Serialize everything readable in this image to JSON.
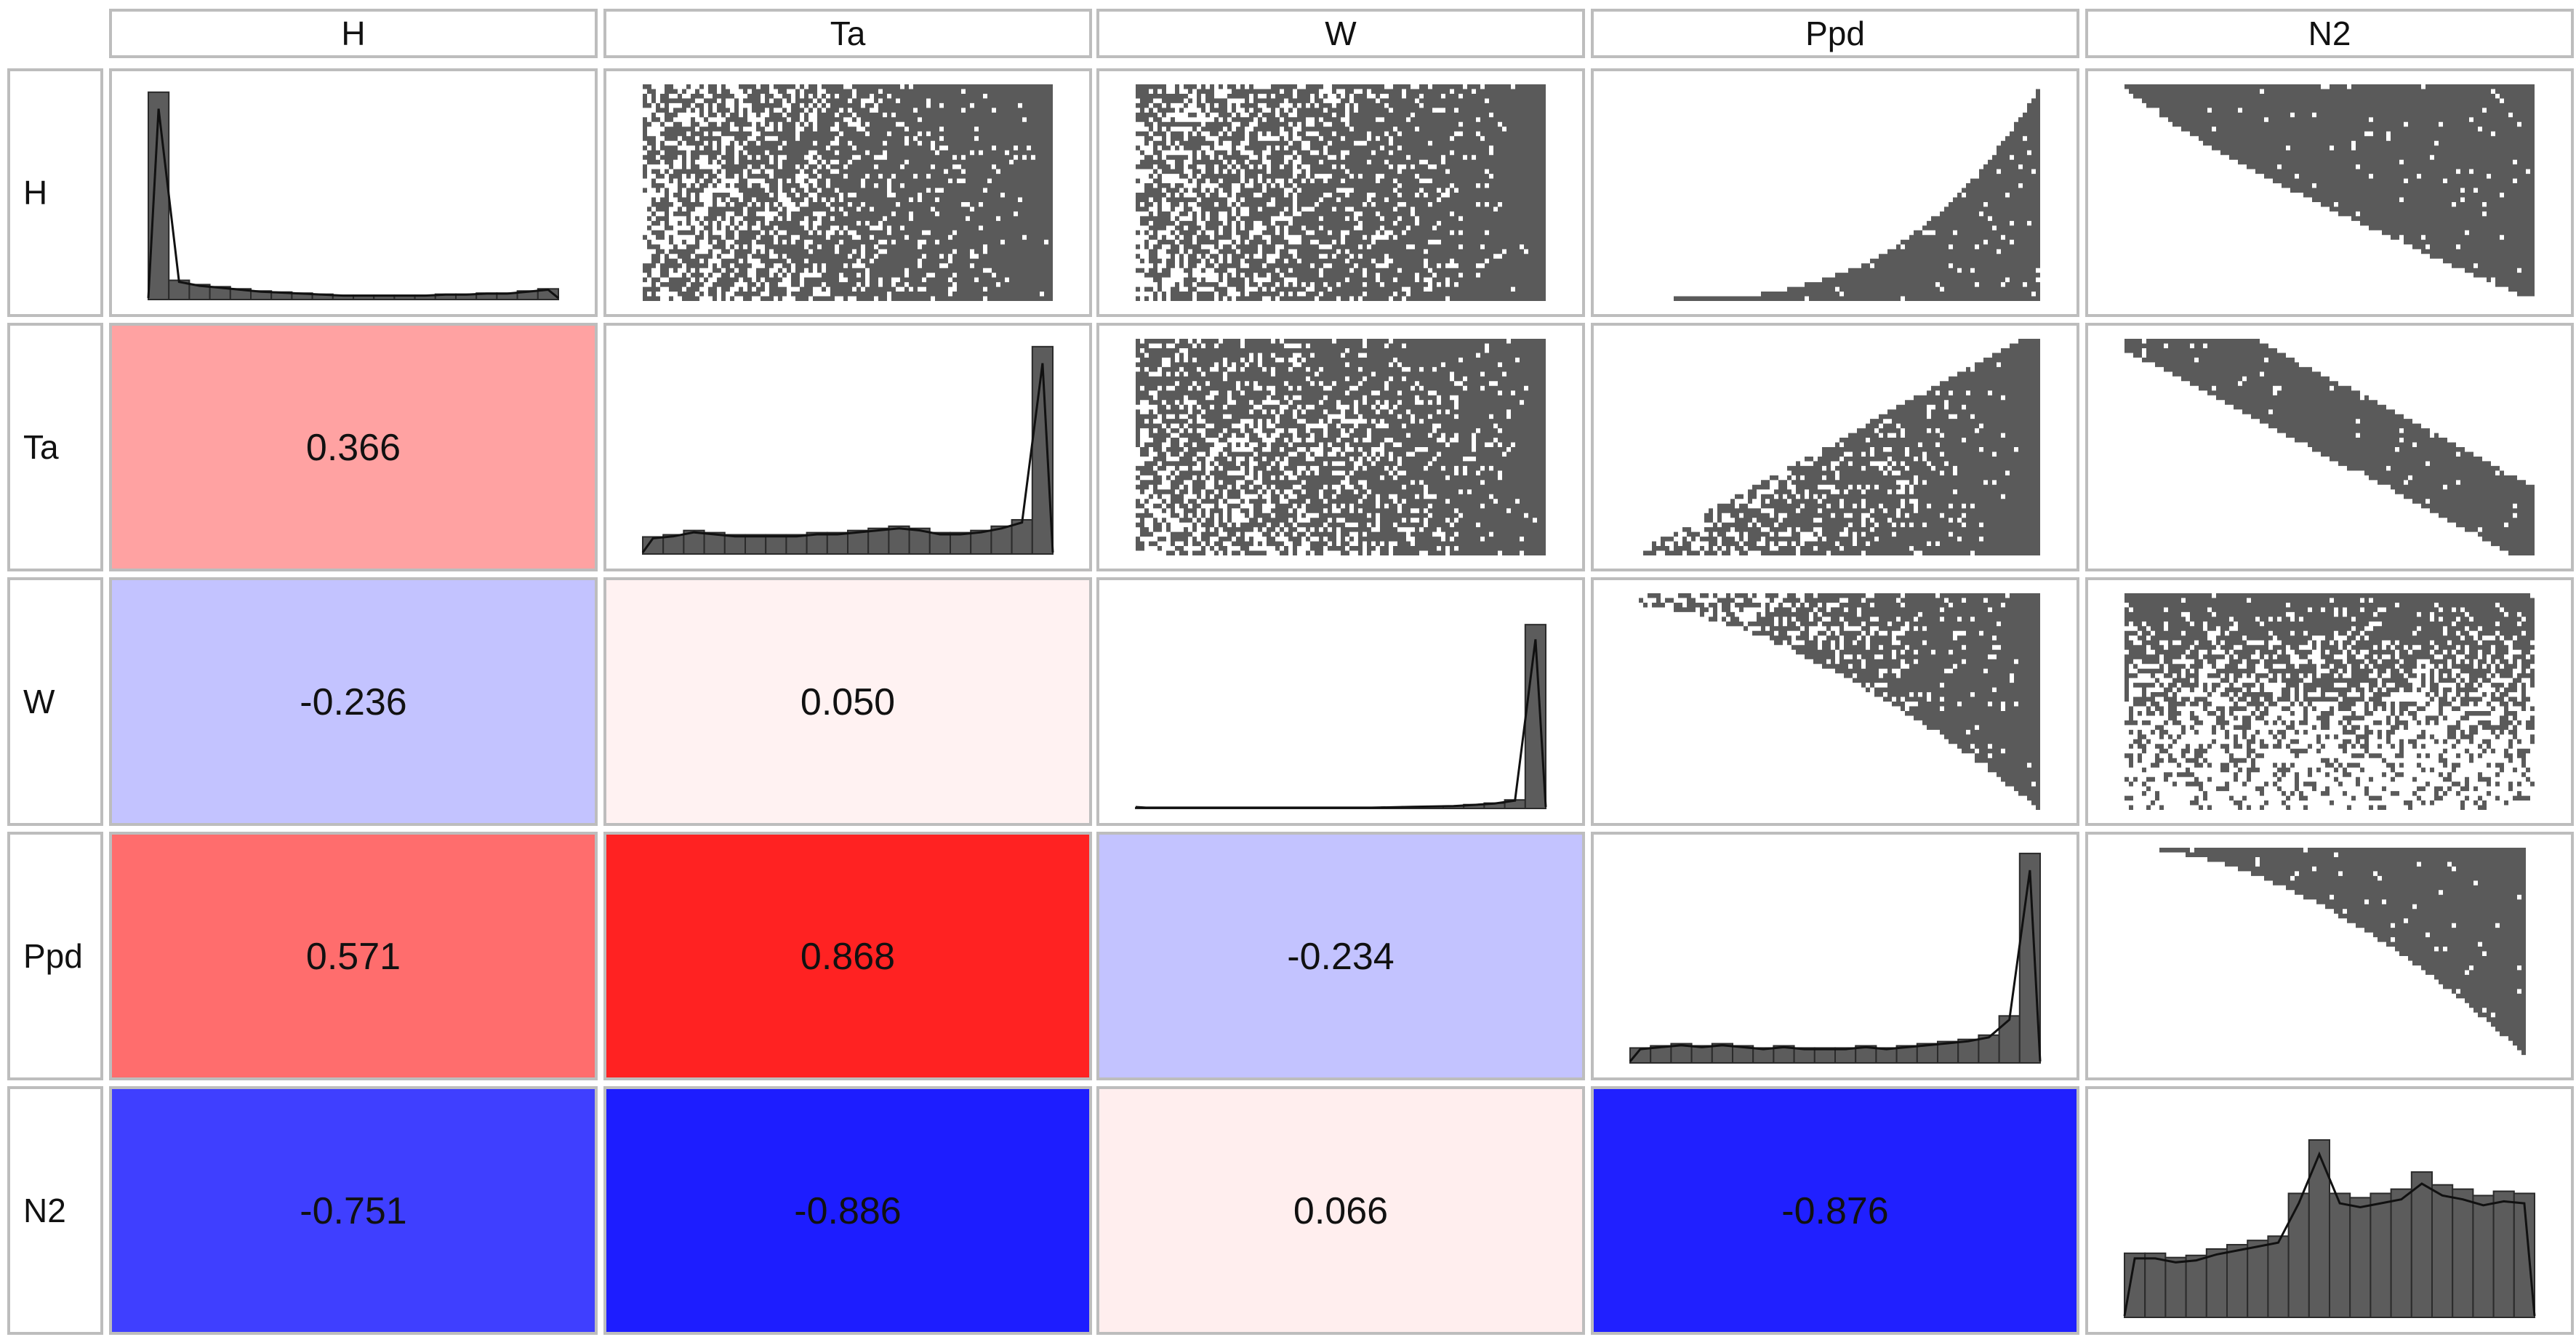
{
  "chart_data": {
    "type": "scatter-matrix",
    "variables": [
      "H",
      "Ta",
      "W",
      "Ppd",
      "N2"
    ],
    "lower": "correlation coefficients",
    "upper": "pairwise scatter plots",
    "diagonal": "histograms with density line",
    "correlations": [
      {
        "row": "Ta",
        "col": "H",
        "value": 0.366,
        "label": "0.366"
      },
      {
        "row": "W",
        "col": "H",
        "value": -0.236,
        "label": "-0.236"
      },
      {
        "row": "W",
        "col": "Ta",
        "value": 0.05,
        "label": "0.050"
      },
      {
        "row": "Ppd",
        "col": "H",
        "value": 0.571,
        "label": "0.571"
      },
      {
        "row": "Ppd",
        "col": "Ta",
        "value": 0.868,
        "label": "0.868"
      },
      {
        "row": "Ppd",
        "col": "W",
        "value": -0.234,
        "label": "-0.234"
      },
      {
        "row": "N2",
        "col": "H",
        "value": -0.751,
        "label": "-0.751"
      },
      {
        "row": "N2",
        "col": "Ta",
        "value": -0.886,
        "label": "-0.886"
      },
      {
        "row": "N2",
        "col": "W",
        "value": 0.066,
        "label": "0.066"
      },
      {
        "row": "N2",
        "col": "Ppd",
        "value": -0.876,
        "label": "-0.876"
      }
    ],
    "histograms": {
      "H": [
        0.97,
        0.09,
        0.07,
        0.06,
        0.05,
        0.04,
        0.035,
        0.03,
        0.025,
        0.02,
        0.02,
        0.02,
        0.02,
        0.02,
        0.025,
        0.025,
        0.03,
        0.03,
        0.04,
        0.05
      ],
      "Ta": [
        0.08,
        0.09,
        0.11,
        0.1,
        0.09,
        0.09,
        0.09,
        0.09,
        0.1,
        0.1,
        0.11,
        0.12,
        0.13,
        0.12,
        0.1,
        0.1,
        0.11,
        0.13,
        0.16,
        0.97
      ],
      "W": [
        0.004,
        0.004,
        0.004,
        0.004,
        0.004,
        0.004,
        0.004,
        0.004,
        0.004,
        0.004,
        0.004,
        0.004,
        0.006,
        0.008,
        0.01,
        0.012,
        0.018,
        0.025,
        0.04,
        0.86
      ],
      "Ppd": [
        0.07,
        0.08,
        0.09,
        0.08,
        0.09,
        0.08,
        0.07,
        0.08,
        0.07,
        0.07,
        0.07,
        0.08,
        0.07,
        0.08,
        0.09,
        0.1,
        0.11,
        0.13,
        0.22,
        0.98
      ],
      "N2": [
        0.3,
        0.3,
        0.28,
        0.29,
        0.32,
        0.34,
        0.36,
        0.38,
        0.58,
        0.83,
        0.58,
        0.56,
        0.58,
        0.6,
        0.68,
        0.62,
        0.6,
        0.57,
        0.59,
        0.58
      ]
    },
    "scatter_shapes": {
      "H-Ta": "uniform-fill-denser-right",
      "H-W": "uniform-fill-denser-right",
      "H-Ppd": "convex-rising-lower-right",
      "H-N2": "upper-right-triangle-descending",
      "Ta-W": "denser-upper-right",
      "Ta-Ppd": "wedge-opening-up-right",
      "Ta-N2": "descending-diagonal-band",
      "W-Ppd": "upper-right-filled-top",
      "W-N2": "dense-top-sparse-bottom",
      "Ppd-N2": "concave-descending-upper-right"
    },
    "colors": {
      "positive": "#ff0000",
      "negative": "#0000ff",
      "neutral": "#ffffff",
      "points": "#5a5a5a",
      "bars": "#5c5c5c"
    }
  }
}
